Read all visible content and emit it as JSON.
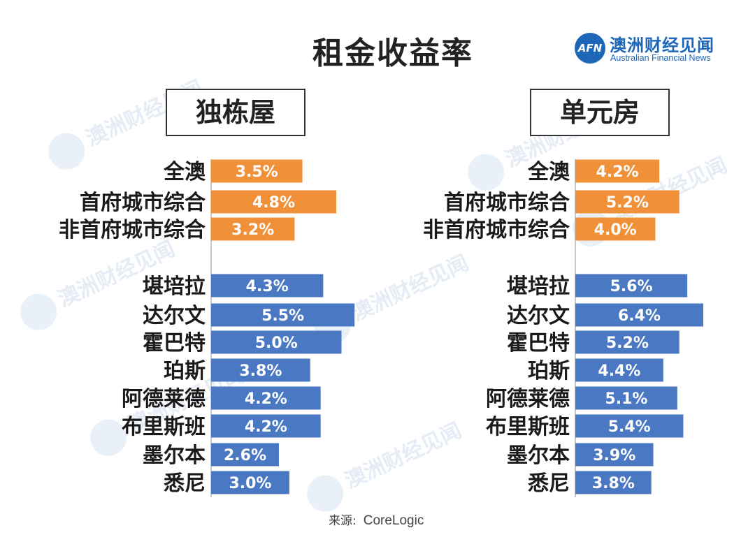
{
  "title": "租金收益率",
  "logo": {
    "mark": "AFN",
    "name_cn": "澳洲财经见闻",
    "name_en": "Australian Financial News"
  },
  "source": {
    "label": "来源:",
    "name": "CoreLogic"
  },
  "colors": {
    "aggregate": "#f0913a",
    "city": "#4a78c2"
  },
  "chart_data": [
    {
      "type": "bar",
      "orientation": "horizontal",
      "title": "独栋屋",
      "unit": "%",
      "groups": [
        {
          "name": "aggregate",
          "color": "#f0913a",
          "categories": [
            "全澳",
            "首府城市综合",
            "非首府城市综合"
          ],
          "values": [
            3.5,
            4.8,
            3.2
          ],
          "labels": [
            "3.5%",
            "4.8%",
            "3.2%"
          ]
        },
        {
          "name": "cities",
          "color": "#4a78c2",
          "categories": [
            "堪培拉",
            "达尔文",
            "霍巴特",
            "珀斯",
            "阿德莱德",
            "布里斯班",
            "墨尔本",
            "悉尼"
          ],
          "values": [
            4.3,
            5.5,
            5.0,
            3.8,
            4.2,
            4.2,
            2.6,
            3.0
          ],
          "labels": [
            "4.3%",
            "5.5%",
            "5.0%",
            "3.8%",
            "4.2%",
            "4.2%",
            "2.6%",
            "3.0%"
          ]
        }
      ]
    },
    {
      "type": "bar",
      "orientation": "horizontal",
      "title": "单元房",
      "unit": "%",
      "groups": [
        {
          "name": "aggregate",
          "color": "#f0913a",
          "categories": [
            "全澳",
            "首府城市综合",
            "非首府城市综合"
          ],
          "values": [
            4.2,
            5.2,
            4.0
          ],
          "labels": [
            "4.2%",
            "5.2%",
            "4.0%"
          ]
        },
        {
          "name": "cities",
          "color": "#4a78c2",
          "categories": [
            "堪培拉",
            "达尔文",
            "霍巴特",
            "珀斯",
            "阿德莱德",
            "布里斯班",
            "墨尔本",
            "悉尼"
          ],
          "values": [
            5.6,
            6.4,
            5.2,
            4.4,
            5.1,
            5.4,
            3.9,
            3.8
          ],
          "labels": [
            "5.6%",
            "6.4%",
            "5.2%",
            "4.4%",
            "5.1%",
            "5.4%",
            "3.9%",
            "3.8%"
          ]
        }
      ]
    }
  ]
}
